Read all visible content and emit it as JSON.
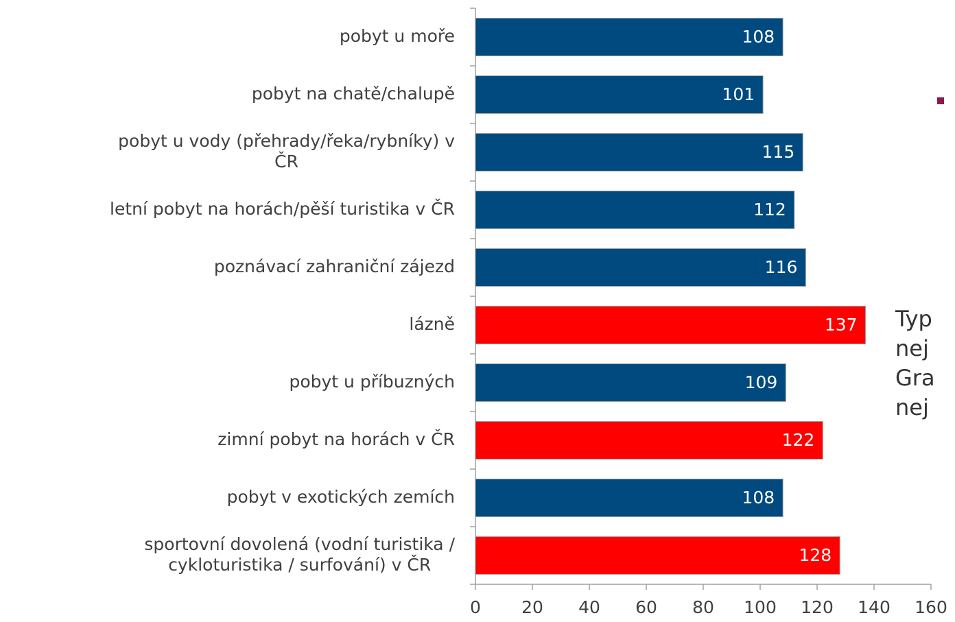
{
  "chart_data": {
    "type": "barh",
    "categories": [
      "pobyt u moře",
      "pobyt na chatě/chalupě",
      "pobyt u vody (přehrady/řeka/rybníky) v\nČR",
      "letní pobyt na horách/pěší turistika v ČR",
      "poznávací zahraniční zájezd",
      "lázně",
      "pobyt u příbuzných",
      "zimní pobyt na horách v ČR",
      "pobyt v exotických zemích",
      "sportovní dovolená (vodní turistika /\ncykloturistika / surfování) v ČR"
    ],
    "values": [
      108,
      101,
      115,
      112,
      116,
      137,
      109,
      122,
      108,
      128
    ],
    "colors": [
      "#004a80",
      "#004a80",
      "#004a80",
      "#004a80",
      "#004a80",
      "#ff0000",
      "#004a80",
      "#ff0000",
      "#004a80",
      "#ff0000"
    ],
    "xlim": [
      0,
      160
    ],
    "xticks": [
      0,
      20,
      40,
      60,
      80,
      100,
      120,
      140,
      160
    ],
    "annotation_lines": [
      "Typ",
      "nej",
      "Gra",
      "nej"
    ]
  }
}
